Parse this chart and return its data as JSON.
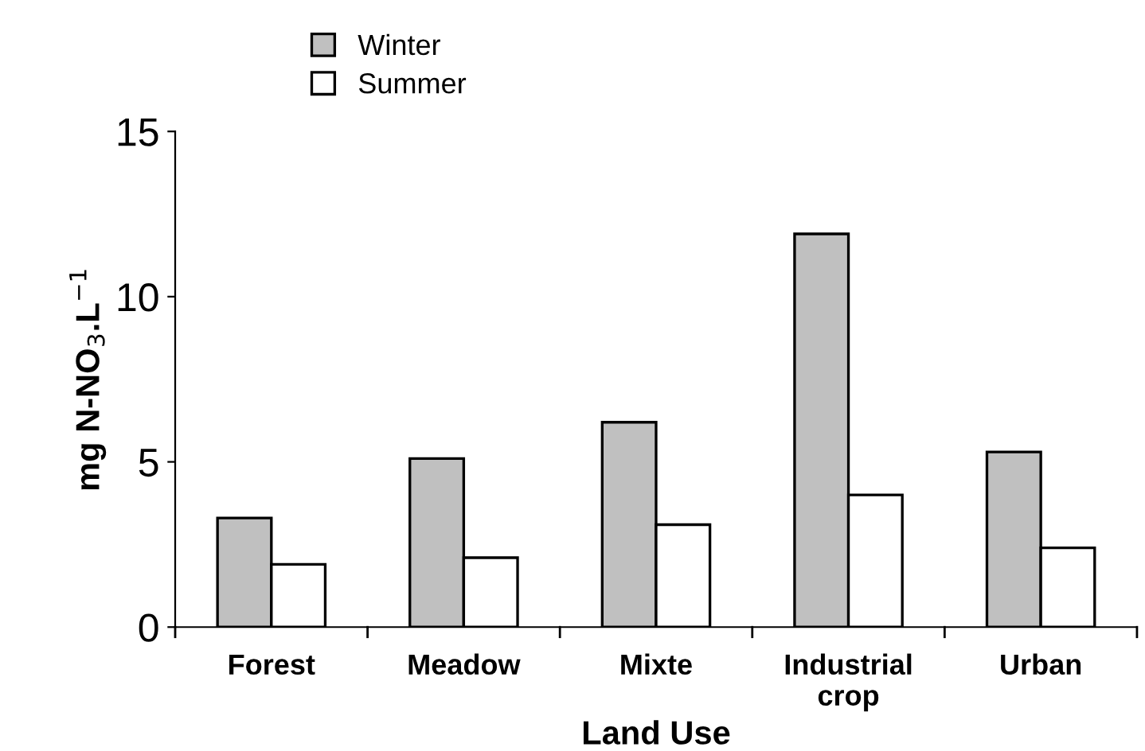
{
  "chart_data": {
    "type": "bar",
    "xlabel": "Land Use",
    "ylabel": "mg N-NO$_{3}$.L$^{−1}$",
    "categories": [
      "Forest",
      "Meadow",
      "Mixte",
      "Industrial\ncrop",
      "Urban"
    ],
    "series": [
      {
        "name": "Winter",
        "color": "#c0c0c0",
        "values": [
          3.3,
          5.1,
          6.2,
          11.9,
          5.3
        ]
      },
      {
        "name": "Summer",
        "color": "#ffffff",
        "values": [
          1.9,
          2.1,
          3.1,
          4.0,
          2.4
        ]
      }
    ],
    "ylim": [
      0,
      15
    ],
    "yticks": [
      0,
      5,
      10,
      15
    ],
    "grid": false,
    "legend": "top"
  }
}
